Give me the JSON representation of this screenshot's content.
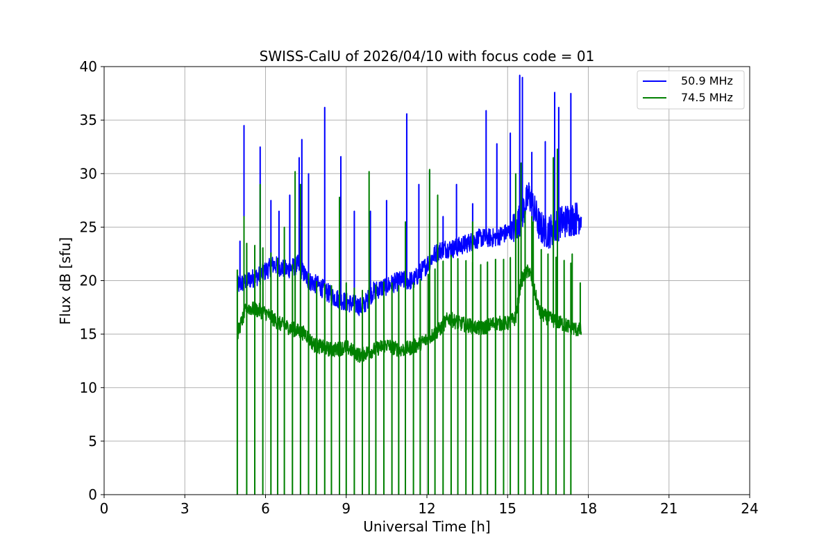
{
  "chart_data": {
    "type": "line",
    "title": "SWISS-CalU of 2026/04/10 with focus code = 01",
    "xlabel": "Universal Time [h]",
    "ylabel": "Flux dB [sfu]",
    "xlim": [
      0,
      24
    ],
    "ylim": [
      0,
      40
    ],
    "xticks": [
      0,
      3,
      6,
      9,
      12,
      15,
      18,
      21,
      24
    ],
    "yticks": [
      0,
      5,
      10,
      15,
      20,
      25,
      30,
      35,
      40
    ],
    "xtick_labels": [
      "0",
      "3",
      "6",
      "9",
      "12",
      "15",
      "18",
      "21",
      "24"
    ],
    "ytick_labels": [
      "0",
      "5",
      "10",
      "15",
      "20",
      "25",
      "30",
      "35",
      "40"
    ],
    "grid": true,
    "legend_position": "top-right",
    "series": [
      {
        "name": "50.9 MHz",
        "legend_label": "50.9 MHz",
        "color": "#0000ff",
        "x_range": [
          4.95,
          17.75
        ],
        "baseline": {
          "x": [
            4.95,
            5.3,
            5.8,
            6.3,
            6.8,
            7.2,
            7.6,
            8.0,
            8.5,
            9.0,
            9.3,
            9.6,
            10.0,
            10.5,
            11.0,
            11.5,
            12.0,
            12.3,
            12.6,
            13.0,
            13.5,
            14.0,
            14.5,
            15.0,
            15.3,
            15.5,
            15.8,
            16.2,
            16.5,
            17.0,
            17.5,
            17.75
          ],
          "y": [
            19.5,
            20.0,
            20.5,
            21.5,
            21.0,
            21.5,
            20.0,
            19.5,
            18.5,
            18.0,
            17.8,
            17.5,
            19.0,
            19.5,
            20.0,
            20.0,
            21.5,
            22.5,
            23.0,
            23.0,
            23.5,
            24.0,
            24.0,
            24.5,
            25.0,
            26.0,
            28.0,
            25.0,
            24.5,
            25.5,
            25.8,
            26.0
          ]
        },
        "spikes": {
          "x": [
            5.05,
            5.2,
            5.8,
            6.2,
            6.5,
            6.9,
            7.25,
            7.35,
            7.6,
            8.2,
            8.8,
            9.3,
            9.9,
            10.5,
            11.25,
            11.7,
            12.1,
            12.6,
            13.1,
            13.7,
            14.2,
            14.6,
            15.1,
            15.45,
            15.55,
            15.9,
            16.4,
            16.75,
            16.9,
            17.35
          ],
          "y": [
            23.7,
            34.5,
            32.5,
            27.5,
            26.5,
            28.0,
            31.5,
            33.2,
            30.0,
            36.2,
            31.6,
            26.5,
            26.5,
            27.5,
            35.6,
            29.0,
            30.3,
            26.0,
            29.0,
            27.2,
            35.9,
            32.8,
            33.8,
            39.2,
            39.0,
            32.0,
            33.0,
            37.6,
            36.2,
            37.5
          ]
        }
      },
      {
        "name": "74.5 MHz",
        "legend_label": "74.5 MHz",
        "color": "#008000",
        "x_range": [
          4.95,
          17.75
        ],
        "baseline": {
          "x": [
            4.95,
            5.3,
            5.6,
            6.0,
            6.5,
            7.0,
            7.5,
            7.8,
            8.5,
            9.0,
            9.5,
            10.0,
            10.5,
            11.0,
            11.5,
            12.0,
            12.5,
            12.8,
            13.2,
            13.6,
            14.0,
            14.5,
            15.0,
            15.3,
            15.5,
            15.8,
            16.2,
            16.5,
            17.0,
            17.5,
            17.75
          ],
          "y": [
            15.0,
            17.5,
            17.3,
            17.0,
            16.0,
            15.5,
            15.0,
            14.0,
            13.5,
            13.8,
            13.0,
            13.5,
            14.0,
            13.5,
            13.8,
            14.5,
            15.5,
            16.5,
            16.0,
            15.8,
            15.5,
            16.0,
            16.0,
            16.5,
            20.0,
            21.0,
            17.0,
            16.5,
            16.0,
            15.5,
            15.3
          ]
        },
        "spikes": {
          "x": [
            5.2,
            5.8,
            6.7,
            7.1,
            7.3,
            8.75,
            9.85,
            11.2,
            12.1,
            12.4,
            13.7,
            15.3,
            15.5,
            15.9,
            16.7,
            16.85,
            17.4,
            17.7
          ],
          "y": [
            26.0,
            29.0,
            25.0,
            30.2,
            29.0,
            27.8,
            30.2,
            25.5,
            30.4,
            28.0,
            25.5,
            30.0,
            31.0,
            26.0,
            31.5,
            32.3,
            22.5,
            19.8
          ]
        },
        "dropouts_to_zero": {
          "x": [
            4.95,
            5.3,
            5.6,
            5.9,
            6.2,
            6.45,
            6.7,
            7.0,
            7.3,
            7.6,
            7.9,
            8.2,
            8.45,
            8.75,
            9.0,
            9.3,
            9.6,
            9.85,
            10.1,
            10.4,
            10.7,
            10.95,
            11.2,
            11.5,
            11.75,
            12.05,
            12.3,
            12.6,
            12.9,
            13.15,
            13.45,
            13.7,
            14.0,
            14.25,
            14.55,
            14.85,
            15.1,
            15.4,
            15.65,
            15.95,
            16.25,
            16.5,
            16.8,
            17.1,
            17.35
          ]
        }
      }
    ]
  }
}
